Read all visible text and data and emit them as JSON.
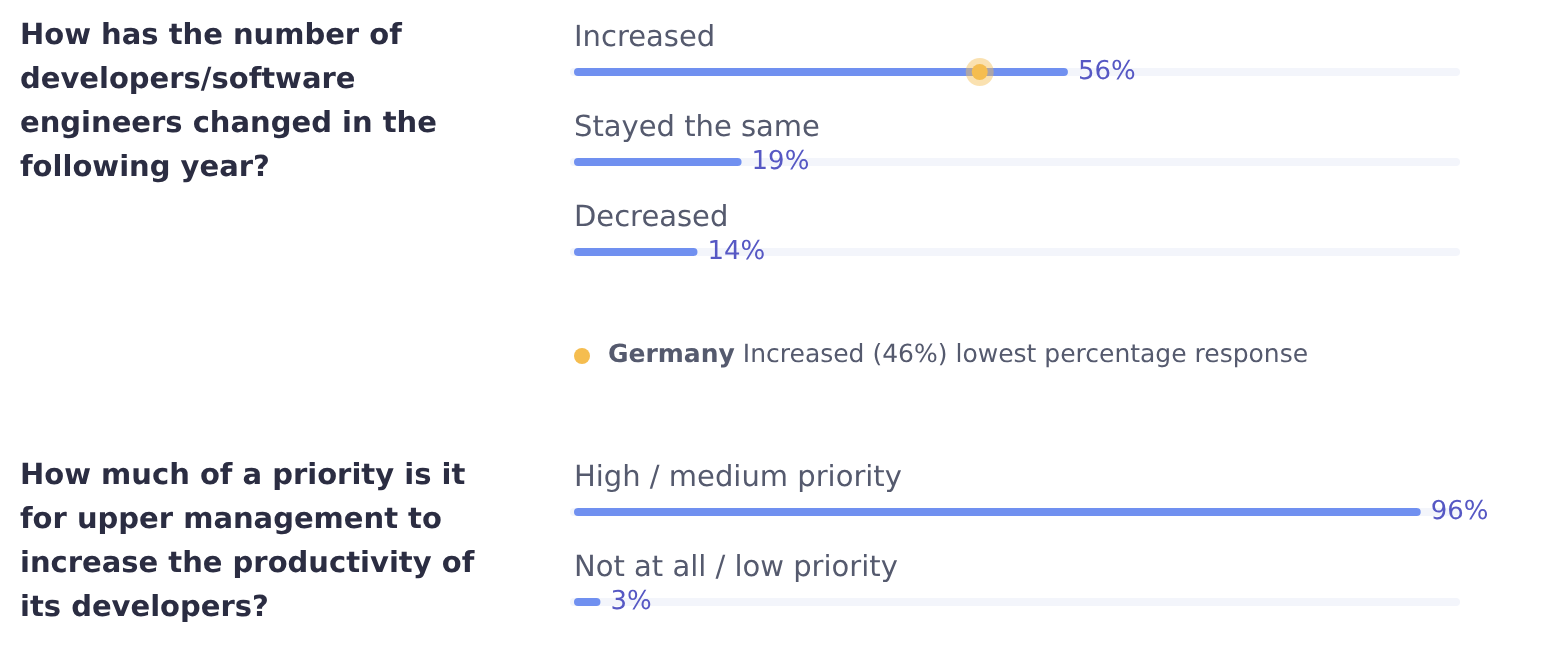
{
  "chart_data": [
    {
      "type": "bar",
      "orientation": "horizontal",
      "title": "How has the number of developers/software engineers changed in the following year?",
      "categories": [
        "Increased",
        "Stayed the same",
        "Decreased"
      ],
      "xlim": [
        0,
        100
      ],
      "tick_labels": "y",
      "legend": "bottom",
      "annotations": [
        "Increased (46%) lowest percentage response"
      ],
      "series": [
        {
          "type": "bar",
          "color": "#7090f0",
          "values": [
            56,
            19,
            14
          ],
          "value_labels": [
            "56%",
            "19%",
            "14%"
          ]
        },
        {
          "type": "scatter",
          "name": "Germany",
          "color": "#f5bd4f",
          "x": [
            "Increased"
          ],
          "values": [
            46
          ],
          "marker": "circle"
        }
      ]
    },
    {
      "type": "bar",
      "orientation": "horizontal",
      "title": "How much of a priority is it for upper management to increase the productivity of its developers?",
      "categories": [
        "High / medium priority",
        "Not at all / low priority"
      ],
      "xlim": [
        0,
        100
      ],
      "tick_labels": "y",
      "series": [
        {
          "type": "bar",
          "color": "#7090f0",
          "values": [
            96,
            3
          ],
          "value_labels": [
            "96%",
            "3%"
          ]
        }
      ]
    }
  ]
}
